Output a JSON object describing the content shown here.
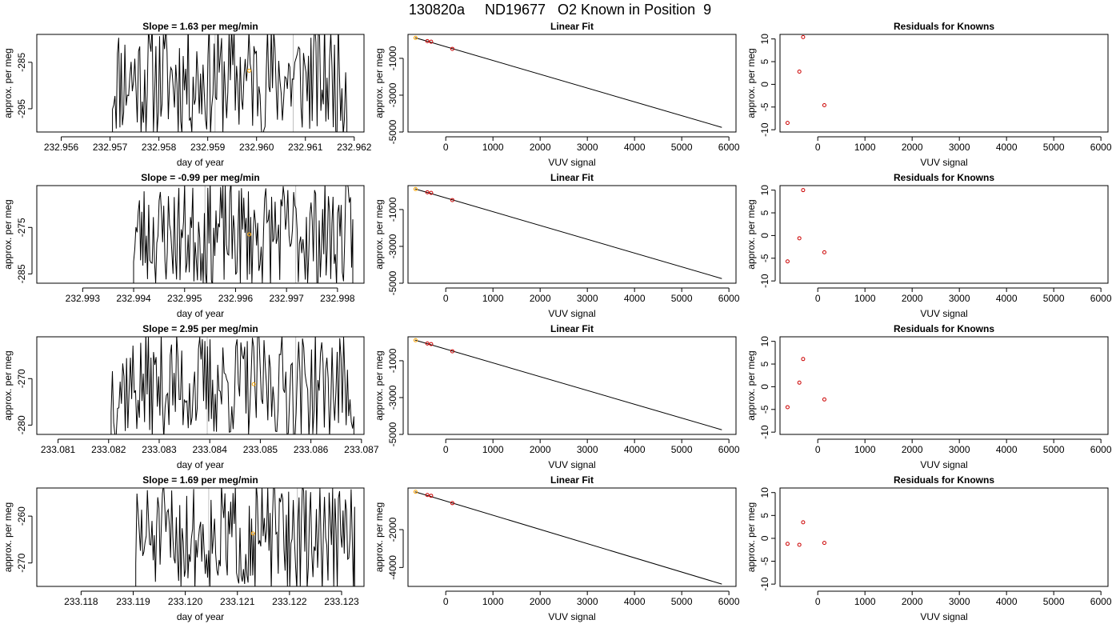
{
  "figure_title": "130820a     ND19677   O2 Known in Position  9",
  "colors": {
    "line": "#000000",
    "known_point": "#ffa500",
    "residual_point": "#cc0000",
    "ref_line": "#bfbfbf"
  },
  "chart_data": [
    {
      "type": "line",
      "title": "Slope =  1.63  per meg/min",
      "xlabel": "day of year",
      "ylabel": "approx. per meg",
      "xlim": [
        232.9555,
        232.9622
      ],
      "ylim": [
        -300,
        -279
      ],
      "xticks": [
        232.956,
        232.957,
        232.958,
        232.959,
        232.96,
        232.961,
        232.962
      ],
      "yticks": [
        -285,
        -295
      ],
      "series_range": [
        232.95705,
        232.96185
      ],
      "center": -288.5,
      "amplitude": 11,
      "seed": 11,
      "ref_lines": [
        232.95915,
        232.96075
      ],
      "point": {
        "x": 232.95985,
        "y": -286.8
      }
    },
    {
      "type": "line",
      "title": "Linear Fit",
      "xlabel": "VUV signal",
      "ylabel": "approx. per meg",
      "xlim": [
        -800,
        6150
      ],
      "ylim": [
        -5000,
        300
      ],
      "xticks": [
        0,
        1000,
        2000,
        3000,
        4000,
        5000,
        6000
      ],
      "yticks": [
        -1000,
        -3000,
        -5000
      ],
      "line": {
        "x": [
          -650,
          5850
        ],
        "y": [
          120,
          -4750
        ]
      },
      "points": [
        {
          "x": -640,
          "y": 113
        },
        {
          "x": -390,
          "y": -65
        },
        {
          "x": -310,
          "y": -95
        },
        {
          "x": 140,
          "y": -485
        }
      ]
    },
    {
      "type": "scatter",
      "title": "Residuals for Knowns",
      "xlabel": "VUV signal",
      "ylabel": "approx. per meg",
      "xlim": [
        -800,
        6150
      ],
      "ylim": [
        -10.5,
        11
      ],
      "xticks": [
        0,
        1000,
        2000,
        3000,
        4000,
        5000,
        6000
      ],
      "yticks": [
        10,
        5,
        0,
        -5,
        -10
      ],
      "points": [
        {
          "x": -640,
          "y": -8.5
        },
        {
          "x": -390,
          "y": 2.8
        },
        {
          "x": -310,
          "y": 10.4
        },
        {
          "x": 140,
          "y": -4.6
        }
      ]
    },
    {
      "type": "line",
      "title": "Slope =  -0.99  per meg/min",
      "xlabel": "day of year",
      "ylabel": "approx. per meg",
      "xlim": [
        232.9921,
        232.99852
      ],
      "ylim": [
        -287,
        -266
      ],
      "xticks": [
        232.993,
        232.994,
        232.995,
        232.996,
        232.997,
        232.998
      ],
      "yticks": [
        -275,
        -285
      ],
      "series_range": [
        232.994,
        232.9983
      ],
      "center": -276.5,
      "amplitude": 10,
      "seed": 23,
      "ref_lines": [
        232.9954,
        232.99718
      ],
      "point": {
        "x": 232.99627,
        "y": -276.5
      }
    },
    {
      "type": "line",
      "title": "Linear Fit",
      "xlabel": "VUV signal",
      "ylabel": "approx. per meg",
      "xlim": [
        -800,
        6150
      ],
      "ylim": [
        -5000,
        300
      ],
      "xticks": [
        0,
        1000,
        2000,
        3000,
        4000,
        5000,
        6000
      ],
      "yticks": [
        -1000,
        -3000,
        -5000
      ],
      "line": {
        "x": [
          -650,
          5850
        ],
        "y": [
          120,
          -4750
        ]
      },
      "points": [
        {
          "x": -640,
          "y": 113
        },
        {
          "x": -390,
          "y": -65
        },
        {
          "x": -310,
          "y": -95
        },
        {
          "x": 140,
          "y": -485
        }
      ]
    },
    {
      "type": "scatter",
      "title": "Residuals for Knowns",
      "xlabel": "VUV signal",
      "ylabel": "approx. per meg",
      "xlim": [
        -800,
        6150
      ],
      "ylim": [
        -10.5,
        11
      ],
      "xticks": [
        0,
        1000,
        2000,
        3000,
        4000,
        5000,
        6000
      ],
      "yticks": [
        10,
        5,
        0,
        -5,
        -10
      ],
      "points": [
        {
          "x": -640,
          "y": -5.7
        },
        {
          "x": -390,
          "y": -0.6
        },
        {
          "x": -310,
          "y": 10.0
        },
        {
          "x": 140,
          "y": -3.7
        }
      ]
    },
    {
      "type": "line",
      "title": "Slope =  2.95  per meg/min",
      "xlabel": "day of year",
      "ylabel": "approx. per meg",
      "xlim": [
        233.08058,
        233.08705
      ],
      "ylim": [
        -282,
        -261
      ],
      "xticks": [
        233.081,
        233.082,
        233.083,
        233.084,
        233.085,
        233.086,
        233.087
      ],
      "yticks": [
        -270,
        -280
      ],
      "series_range": [
        233.08205,
        233.08685
      ],
      "center": -271.5,
      "amplitude": 10,
      "seed": 37,
      "ref_lines": [
        233.08395,
        233.0857
      ],
      "point": {
        "x": 233.08487,
        "y": -271.2
      }
    },
    {
      "type": "line",
      "title": "Linear Fit",
      "xlabel": "VUV signal",
      "ylabel": "approx. per meg",
      "xlim": [
        -800,
        6150
      ],
      "ylim": [
        -5000,
        300
      ],
      "xticks": [
        0,
        1000,
        2000,
        3000,
        4000,
        5000,
        6000
      ],
      "yticks": [
        -1000,
        -3000,
        -5000
      ],
      "line": {
        "x": [
          -650,
          5850
        ],
        "y": [
          120,
          -4750
        ]
      },
      "points": [
        {
          "x": -640,
          "y": 113
        },
        {
          "x": -390,
          "y": -65
        },
        {
          "x": -310,
          "y": -95
        },
        {
          "x": 140,
          "y": -485
        }
      ]
    },
    {
      "type": "scatter",
      "title": "Residuals for Knowns",
      "xlabel": "VUV signal",
      "ylabel": "approx. per meg",
      "xlim": [
        -800,
        6150
      ],
      "ylim": [
        -10.5,
        11
      ],
      "xticks": [
        0,
        1000,
        2000,
        3000,
        4000,
        5000,
        6000
      ],
      "yticks": [
        10,
        5,
        0,
        -5,
        -10
      ],
      "points": [
        {
          "x": -640,
          "y": -4.5
        },
        {
          "x": -390,
          "y": 0.9
        },
        {
          "x": -310,
          "y": 6.1
        },
        {
          "x": 140,
          "y": -2.8
        }
      ]
    },
    {
      "type": "line",
      "title": "Slope =  1.69  per meg/min",
      "xlabel": "day of year",
      "ylabel": "approx. per meg",
      "xlim": [
        233.11715,
        233.12343
      ],
      "ylim": [
        -275,
        -254
      ],
      "xticks": [
        233.118,
        233.119,
        233.12,
        233.121,
        233.122,
        233.123
      ],
      "yticks": [
        -260,
        -270
      ],
      "series_range": [
        233.11905,
        233.12325
      ],
      "center": -264.5,
      "amplitude": 10,
      "seed": 51,
      "ref_lines": [
        233.12045,
        233.12215
      ],
      "point": {
        "x": 233.1213,
        "y": -263.7
      }
    },
    {
      "type": "line",
      "title": "Linear Fit",
      "xlabel": "VUV signal",
      "ylabel": "approx. per meg",
      "xlim": [
        -800,
        6150
      ],
      "ylim": [
        -5000,
        200
      ],
      "xticks": [
        0,
        1000,
        2000,
        3000,
        4000,
        5000,
        6000
      ],
      "yticks": [
        -2000,
        -4000
      ],
      "line": {
        "x": [
          -650,
          5850
        ],
        "y": [
          0,
          -4880
        ]
      },
      "points": [
        {
          "x": -640,
          "y": 0
        },
        {
          "x": -390,
          "y": -170
        },
        {
          "x": -310,
          "y": -210
        },
        {
          "x": 140,
          "y": -600
        }
      ]
    },
    {
      "type": "scatter",
      "title": "Residuals for Knowns",
      "xlabel": "VUV signal",
      "ylabel": "approx. per meg",
      "xlim": [
        -800,
        6150
      ],
      "ylim": [
        -10.5,
        11
      ],
      "xticks": [
        0,
        1000,
        2000,
        3000,
        4000,
        5000,
        6000
      ],
      "yticks": [
        10,
        5,
        0,
        -5,
        -10
      ],
      "points": [
        {
          "x": -640,
          "y": -1.2
        },
        {
          "x": -390,
          "y": -1.4
        },
        {
          "x": -310,
          "y": 3.5
        },
        {
          "x": 140,
          "y": -1.0
        }
      ]
    }
  ]
}
